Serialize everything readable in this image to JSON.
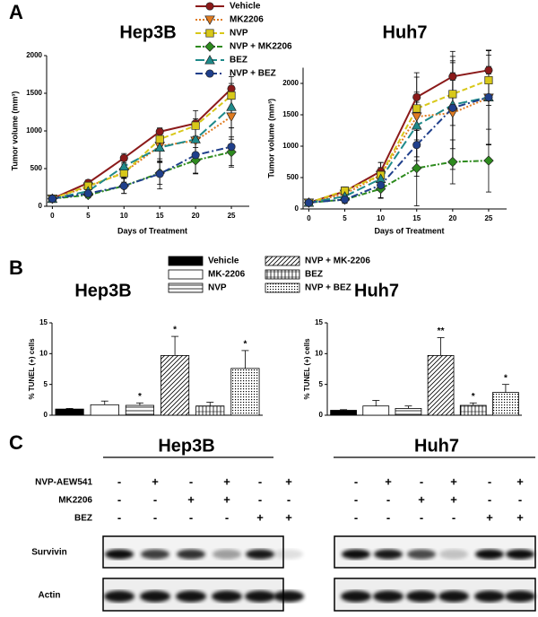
{
  "panels": [
    "A",
    "B",
    "C"
  ],
  "chart_data": [
    {
      "type": "line",
      "title": "Hep3B",
      "xlabel": "Days of Treatment",
      "ylabel": "Tumor volume (mm³)",
      "x": [
        0,
        5,
        10,
        15,
        20,
        25
      ],
      "xlim": [
        -0.8,
        27.5
      ],
      "xticks": [
        0,
        5,
        10,
        15,
        20,
        25
      ],
      "ylim": [
        0,
        2000
      ],
      "yticks": [
        0,
        500,
        1000,
        1500,
        2000
      ],
      "series": [
        {
          "name": "Vehicle",
          "color": "#8b1a1a",
          "values": [
            100,
            310,
            640,
            990,
            1100,
            1560
          ],
          "errors": [
            20,
            40,
            60,
            40,
            60,
            70
          ]
        },
        {
          "name": "MK2206",
          "color": "#e07b20",
          "values": [
            100,
            260,
            450,
            800,
            870,
            1190
          ],
          "errors": [
            20,
            60,
            150,
            200,
            250,
            300
          ]
        },
        {
          "name": "NVP",
          "color": "#d8c81a",
          "values": [
            100,
            270,
            440,
            890,
            1070,
            1470
          ],
          "errors": [
            20,
            50,
            120,
            150,
            200,
            250
          ]
        },
        {
          "name": "NVP + MK2206",
          "color": "#2e8b1e",
          "values": [
            100,
            150,
            270,
            440,
            610,
            720
          ],
          "errors": [
            20,
            40,
            100,
            150,
            170,
            200
          ]
        },
        {
          "name": "BEZ",
          "color": "#1f8a8a",
          "values": [
            100,
            200,
            530,
            780,
            890,
            1320
          ],
          "errors": [
            20,
            60,
            150,
            200,
            200,
            280
          ]
        },
        {
          "name": "NVP + BEZ",
          "color": "#1f3f8b",
          "values": [
            100,
            170,
            270,
            430,
            680,
            790
          ],
          "errors": [
            20,
            50,
            100,
            200,
            250,
            250
          ]
        }
      ]
    },
    {
      "type": "line",
      "title": "Huh7",
      "xlabel": "Days of Treatment",
      "ylabel": "Tumor volume (mm³)",
      "x": [
        0,
        5,
        10,
        15,
        20,
        25
      ],
      "xlim": [
        -0.8,
        27.5
      ],
      "xticks": [
        0,
        5,
        10,
        15,
        20,
        25
      ],
      "ylim": [
        0,
        2250
      ],
      "yticks": [
        0,
        500,
        1000,
        1500,
        2000
      ],
      "series": [
        {
          "color": "#8b1a1a",
          "values": [
            100,
            280,
            600,
            1780,
            2110,
            2210
          ],
          "errors": [
            20,
            40,
            60,
            80,
            60,
            60
          ]
        },
        {
          "color": "#e07b20",
          "values": [
            100,
            240,
            540,
            1470,
            1530,
            1770
          ],
          "errors": [
            20,
            60,
            200,
            700,
            900,
            750
          ]
        },
        {
          "color": "#d8c81a",
          "values": [
            100,
            290,
            540,
            1600,
            1830,
            2050
          ],
          "errors": [
            20,
            60,
            200,
            500,
            500,
            400
          ]
        },
        {
          "color": "#2e8b1e",
          "values": [
            100,
            150,
            320,
            650,
            750,
            770
          ],
          "errors": [
            20,
            60,
            150,
            600,
            350,
            500
          ]
        },
        {
          "color": "#1f8a8a",
          "values": [
            100,
            200,
            480,
            1330,
            1660,
            1780
          ],
          "errors": [
            20,
            60,
            150,
            500,
            700,
            750
          ]
        },
        {
          "color": "#1f3f8b",
          "values": [
            100,
            150,
            380,
            1020,
            1610,
            1780
          ],
          "errors": [
            20,
            60,
            200,
            500,
            900,
            750
          ]
        }
      ]
    },
    {
      "type": "bar",
      "title": "Hep3B",
      "ylabel": "% TUNEL (+) cells",
      "categories": [
        "Vehicle",
        "MK-2206",
        "NVP",
        "NVP + MK-2206",
        "BEZ",
        "NVP + BEZ"
      ],
      "patterns": [
        "solid",
        "open",
        "hlines",
        "diagonal",
        "vlines",
        "dots"
      ],
      "values": [
        1.0,
        1.7,
        1.6,
        9.7,
        1.5,
        7.6
      ],
      "errors": [
        0.1,
        0.6,
        0.4,
        3.1,
        0.6,
        2.9
      ],
      "ylim": [
        0,
        15
      ],
      "yticks": [
        0,
        5,
        10,
        15
      ],
      "annotations": [
        {
          "category": "NVP",
          "text": "*"
        },
        {
          "category": "NVP + MK-2206",
          "text": "*"
        },
        {
          "category": "NVP + BEZ",
          "text": "*"
        }
      ]
    },
    {
      "type": "bar",
      "title": "Huh7",
      "ylabel": "% TUNEL (+) cells",
      "patterns": [
        "solid",
        "open",
        "hlines",
        "diagonal",
        "vlines",
        "dots"
      ],
      "values": [
        0.8,
        1.5,
        1.1,
        9.7,
        1.6,
        3.7
      ],
      "errors": [
        0.1,
        0.9,
        0.4,
        2.9,
        0.4,
        1.3
      ],
      "ylim": [
        0,
        15
      ],
      "yticks": [
        0,
        5,
        10,
        15
      ],
      "annotations": [
        {
          "category": "NVP + MK-2206",
          "text": "**"
        },
        {
          "category": "BEZ",
          "text": "*"
        },
        {
          "category": "NVP + BEZ",
          "text": "*"
        }
      ]
    }
  ],
  "blot": {
    "groups": [
      "Hep3B",
      "Huh7"
    ],
    "treatments": [
      {
        "label": "NVP-AEW541",
        "lanes": [
          "-",
          "+",
          "-",
          "+",
          "-",
          "+"
        ]
      },
      {
        "label": "MK2206",
        "lanes": [
          "-",
          "-",
          "+",
          "+",
          "-",
          "-"
        ]
      },
      {
        "label": "BEZ",
        "lanes": [
          "-",
          "-",
          "-",
          "-",
          "+",
          "+"
        ]
      }
    ],
    "rows": [
      "Survivin",
      "Actin"
    ]
  }
}
